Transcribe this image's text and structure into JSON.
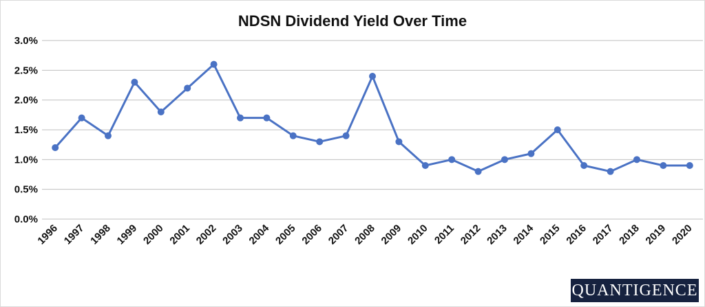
{
  "chart_data": {
    "type": "line",
    "title": "NDSN Dividend Yield Over Time",
    "xlabel": "",
    "ylabel": "",
    "categories": [
      "1996",
      "1997",
      "1998",
      "1999",
      "2000",
      "2001",
      "2002",
      "2003",
      "2004",
      "2005",
      "2006",
      "2007",
      "2008",
      "2009",
      "2010",
      "2011",
      "2012",
      "2013",
      "2014",
      "2015",
      "2016",
      "2017",
      "2018",
      "2019",
      "2020"
    ],
    "series": [
      {
        "values": [
          1.2,
          1.7,
          1.4,
          2.3,
          1.8,
          2.2,
          2.6,
          1.7,
          1.7,
          1.4,
          1.3,
          1.4,
          2.4,
          1.3,
          0.9,
          1.0,
          0.8,
          1.0,
          1.1,
          1.5,
          0.9,
          0.8,
          1.0,
          0.9,
          0.9
        ]
      }
    ],
    "ylim": [
      0,
      3.0
    ],
    "yticks": [
      0,
      0.5,
      1.0,
      1.5,
      2.0,
      2.5,
      3.0
    ],
    "ytick_labels": [
      "0.0%",
      "0.5%",
      "1.0%",
      "1.5%",
      "2.0%",
      "2.5%",
      "3.0%"
    ],
    "grid": true,
    "legend": "none",
    "line_color": "#4a72c4",
    "grid_color": "#bfbfbf"
  },
  "watermark": {
    "text": "QUANTIGENCE"
  }
}
